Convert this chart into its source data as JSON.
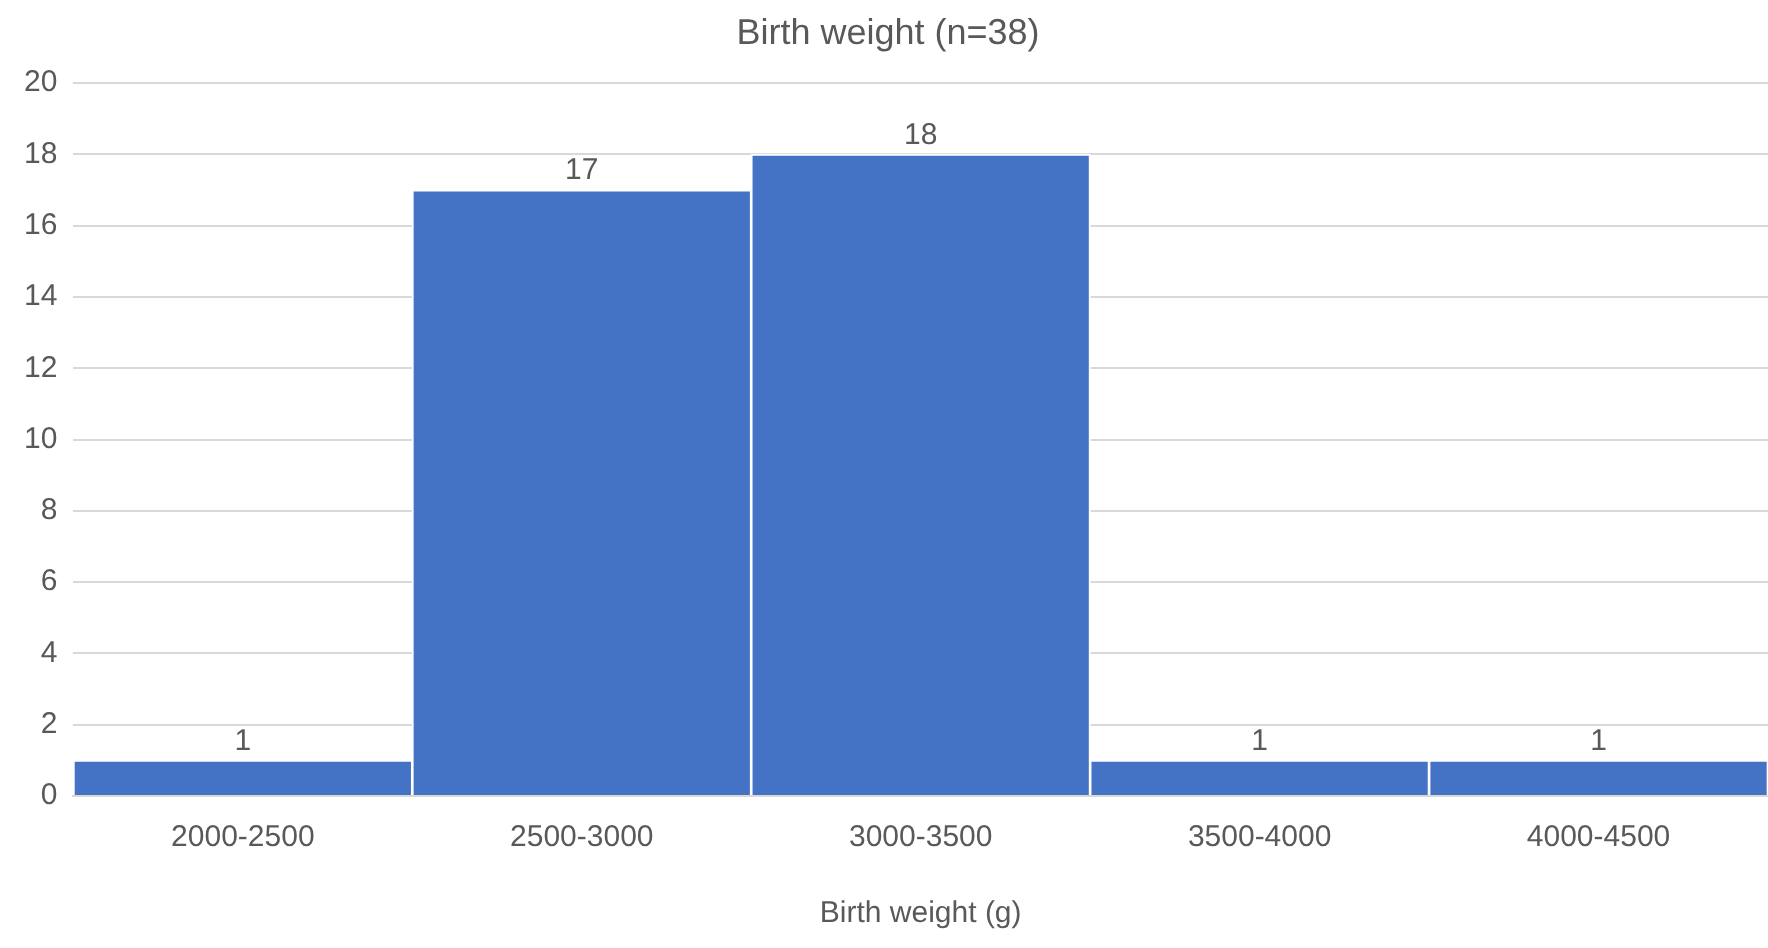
{
  "chart_data": {
    "type": "bar",
    "title": "Birth weight (n=38)",
    "xlabel": "Birth weight (g)",
    "categories": [
      "2000-2500",
      "2500-3000",
      "3000-3500",
      "3500-4000",
      "4000-4500"
    ],
    "values": [
      1,
      17,
      18,
      1,
      1
    ],
    "color": "#4472c4",
    "ylim": [
      0,
      20
    ],
    "yticks": [
      0,
      2,
      4,
      6,
      8,
      10,
      12,
      14,
      16,
      18,
      20
    ],
    "grid": "y",
    "data_labels": true
  }
}
